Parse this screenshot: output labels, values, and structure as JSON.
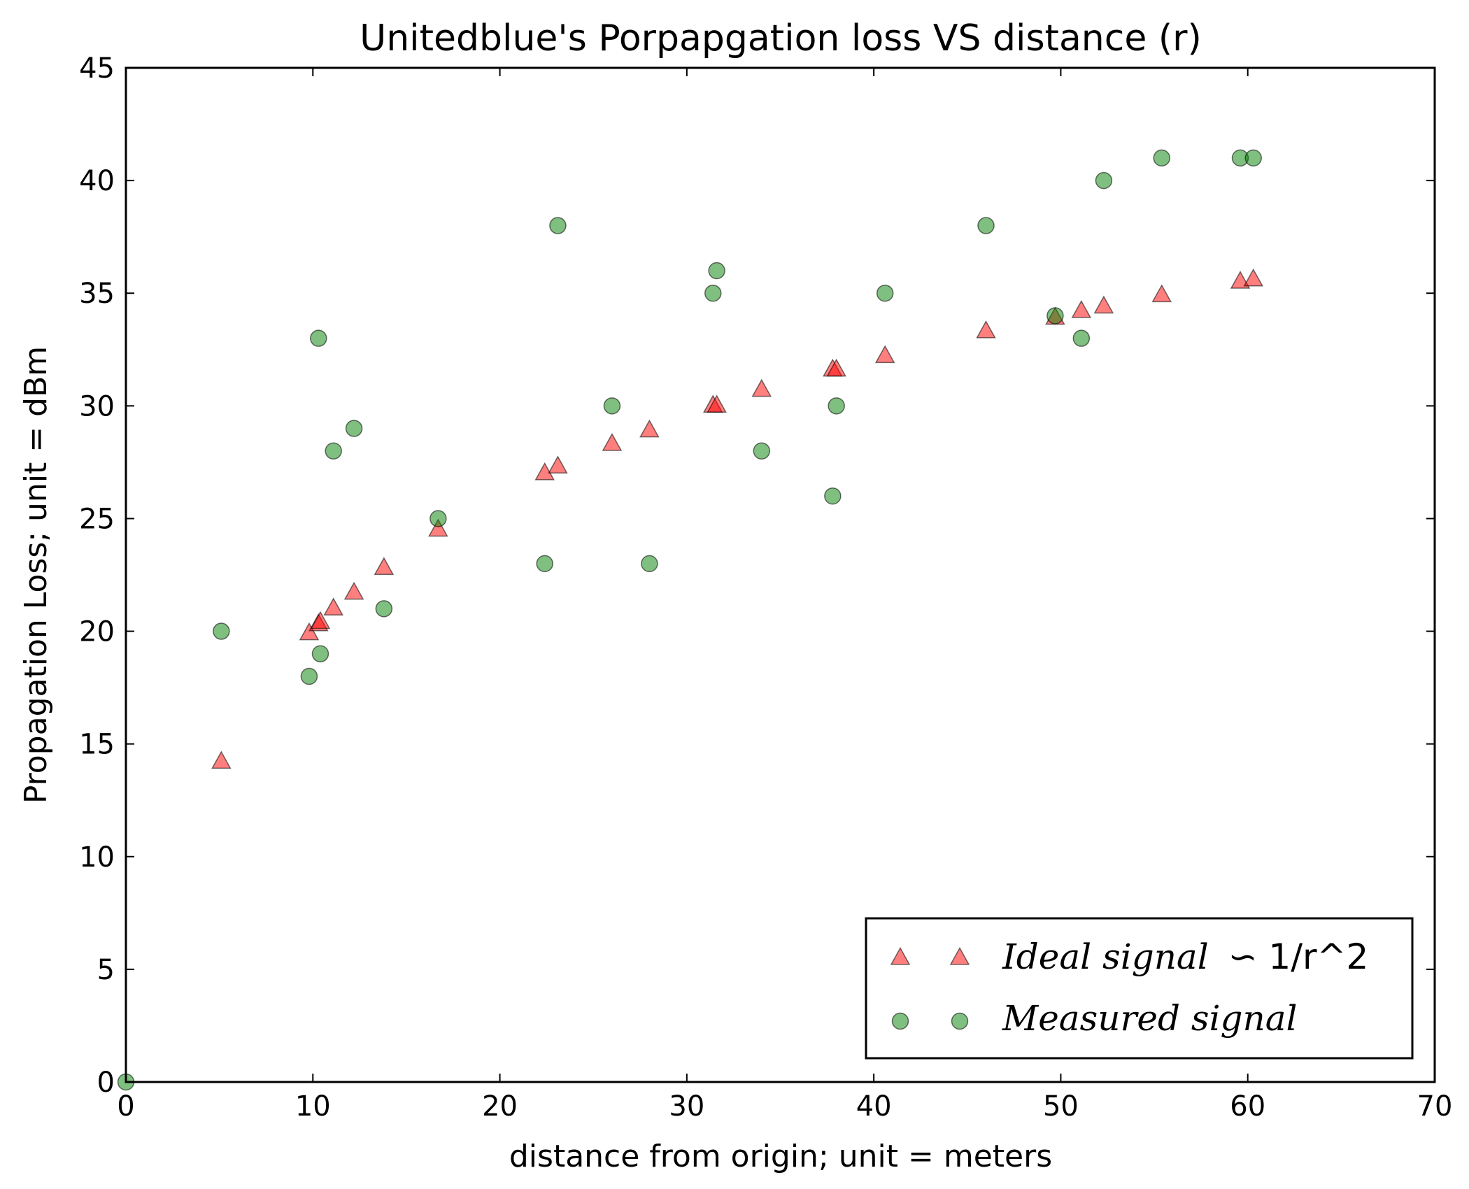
{
  "chart_data": {
    "type": "scatter",
    "title": "Unitedblue's Porpapgation loss VS distance (r)",
    "xlabel": "distance from origin; unit = meters",
    "ylabel": "Propagation Loss; unit = dBm",
    "xlim": [
      0,
      70
    ],
    "ylim": [
      0,
      45
    ],
    "xticks": [
      0,
      10,
      20,
      30,
      40,
      50,
      60,
      70
    ],
    "yticks": [
      0,
      5,
      10,
      15,
      20,
      25,
      30,
      35,
      40,
      45
    ],
    "grid": false,
    "legend_position": "bottom-right",
    "series": [
      {
        "name": "Ideal signal",
        "name_suffix": "∽ 1/r^2",
        "marker": "triangle",
        "color": "#ff0000",
        "points": [
          [
            5.1,
            14.2
          ],
          [
            9.8,
            19.9
          ],
          [
            10.3,
            20.3
          ],
          [
            10.4,
            20.4
          ],
          [
            11.1,
            21.0
          ],
          [
            12.2,
            21.7
          ],
          [
            13.8,
            22.8
          ],
          [
            16.7,
            24.5
          ],
          [
            22.4,
            27.0
          ],
          [
            23.1,
            27.3
          ],
          [
            26.0,
            28.3
          ],
          [
            28.0,
            28.9
          ],
          [
            31.4,
            30.0
          ],
          [
            31.6,
            30.0
          ],
          [
            34.0,
            30.7
          ],
          [
            37.8,
            31.6
          ],
          [
            38.0,
            31.6
          ],
          [
            40.6,
            32.2
          ],
          [
            46.0,
            33.3
          ],
          [
            49.7,
            33.9
          ],
          [
            51.1,
            34.2
          ],
          [
            52.3,
            34.4
          ],
          [
            55.4,
            34.9
          ],
          [
            59.6,
            35.5
          ],
          [
            60.3,
            35.6
          ]
        ]
      },
      {
        "name": "Measured signal",
        "marker": "circle",
        "color": "#008000",
        "points": [
          [
            0,
            0
          ],
          [
            5.1,
            20
          ],
          [
            9.8,
            18
          ],
          [
            10.3,
            33
          ],
          [
            10.4,
            19
          ],
          [
            11.1,
            28
          ],
          [
            12.2,
            29
          ],
          [
            13.8,
            21
          ],
          [
            16.7,
            25
          ],
          [
            22.4,
            23
          ],
          [
            23.1,
            38
          ],
          [
            26.0,
            30
          ],
          [
            28.0,
            23
          ],
          [
            31.4,
            35
          ],
          [
            31.6,
            36
          ],
          [
            34.0,
            28
          ],
          [
            37.8,
            26
          ],
          [
            38.0,
            30
          ],
          [
            40.6,
            35
          ],
          [
            46.0,
            38
          ],
          [
            49.7,
            34
          ],
          [
            51.1,
            33
          ],
          [
            52.3,
            40
          ],
          [
            55.4,
            41
          ],
          [
            59.6,
            41
          ],
          [
            60.3,
            41
          ]
        ]
      }
    ]
  }
}
